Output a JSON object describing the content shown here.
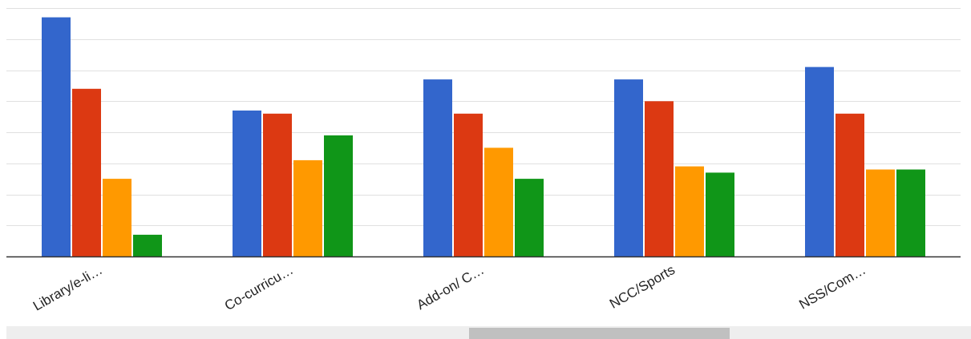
{
  "chart_data": {
    "type": "bar",
    "categories": [
      "Library/e-li…",
      "Co-curricu…",
      "Add-on/ C…",
      "NCC/Sports",
      "NSS/Com…"
    ],
    "series": [
      {
        "color": "#3366cc",
        "values": [
          38.5,
          23.5,
          28.5,
          28.5,
          30.5
        ]
      },
      {
        "color": "#dc3912",
        "values": [
          27,
          23,
          23,
          25,
          23
        ]
      },
      {
        "color": "#ff9900",
        "values": [
          12.5,
          15.5,
          17.5,
          14.5,
          14
        ]
      },
      {
        "color": "#109618",
        "values": [
          3.5,
          19.5,
          12.5,
          13.5,
          14
        ]
      }
    ],
    "ylim": [
      0,
      40
    ],
    "grid": true,
    "tick_step": 5,
    "title": "",
    "xlabel": "",
    "ylabel": ""
  },
  "colors": {
    "gridline": "#e0e0e0",
    "baseline": "#333333",
    "scrollbar_track": "#eeeeee",
    "scrollbar_thumb": "#c0c0c0"
  }
}
